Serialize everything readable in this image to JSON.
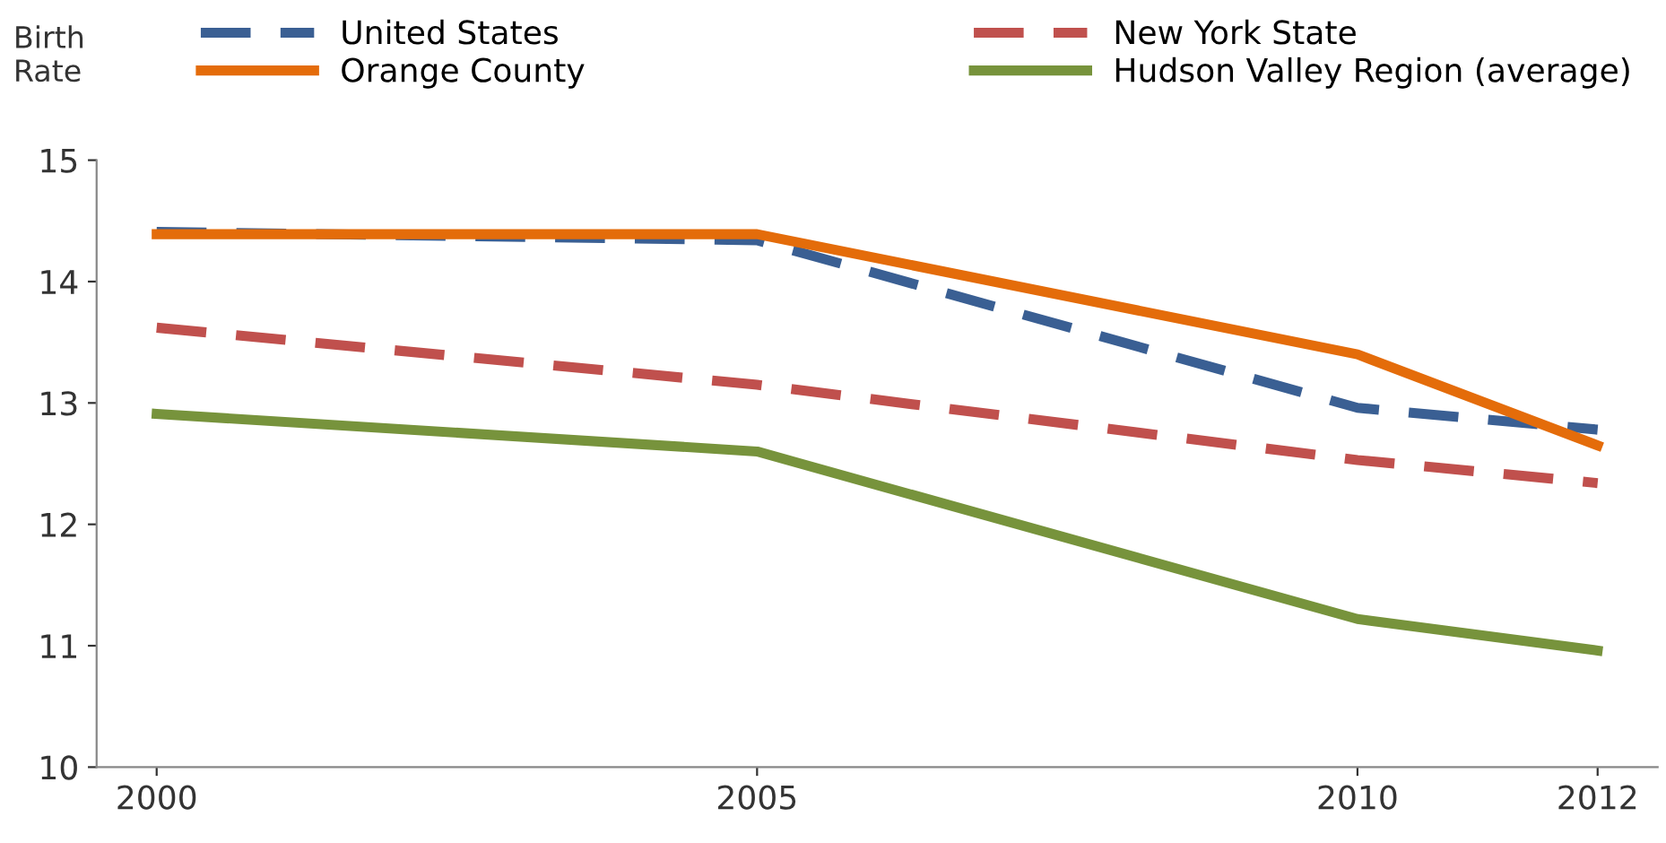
{
  "chart_data": {
    "type": "line",
    "ylabel": "Birth\nRate",
    "x": [
      2000,
      2005,
      2010,
      2012
    ],
    "series": [
      {
        "name": "United States",
        "color": "#3a5f93",
        "line_style": "dashed",
        "values": [
          14.41,
          14.34,
          12.96,
          12.78
        ]
      },
      {
        "name": "New York State",
        "color": "#c0504d",
        "line_style": "dashed",
        "values": [
          13.62,
          13.15,
          12.53,
          12.34
        ]
      },
      {
        "name": "Orange County",
        "color": "#e46c0a",
        "line_style": "solid",
        "values": [
          14.39,
          14.39,
          13.4,
          12.65
        ]
      },
      {
        "name": "Hudson Valley Region (average)",
        "color": "#77933c",
        "line_style": "solid",
        "values": [
          12.91,
          12.6,
          11.22,
          10.96
        ]
      }
    ],
    "xlim": [
      1999.5,
      2012.5
    ],
    "xticks": [
      {
        "value": 2000,
        "label": "2000"
      },
      {
        "value": 2005,
        "label": "2005"
      },
      {
        "value": 2010,
        "label": "2010"
      },
      {
        "value": 2012,
        "label": "2012"
      }
    ],
    "ylim": [
      10,
      15
    ],
    "yticks": [
      10,
      11,
      12,
      13,
      14,
      15
    ],
    "grid": false,
    "legend": "top",
    "marker": "none"
  }
}
